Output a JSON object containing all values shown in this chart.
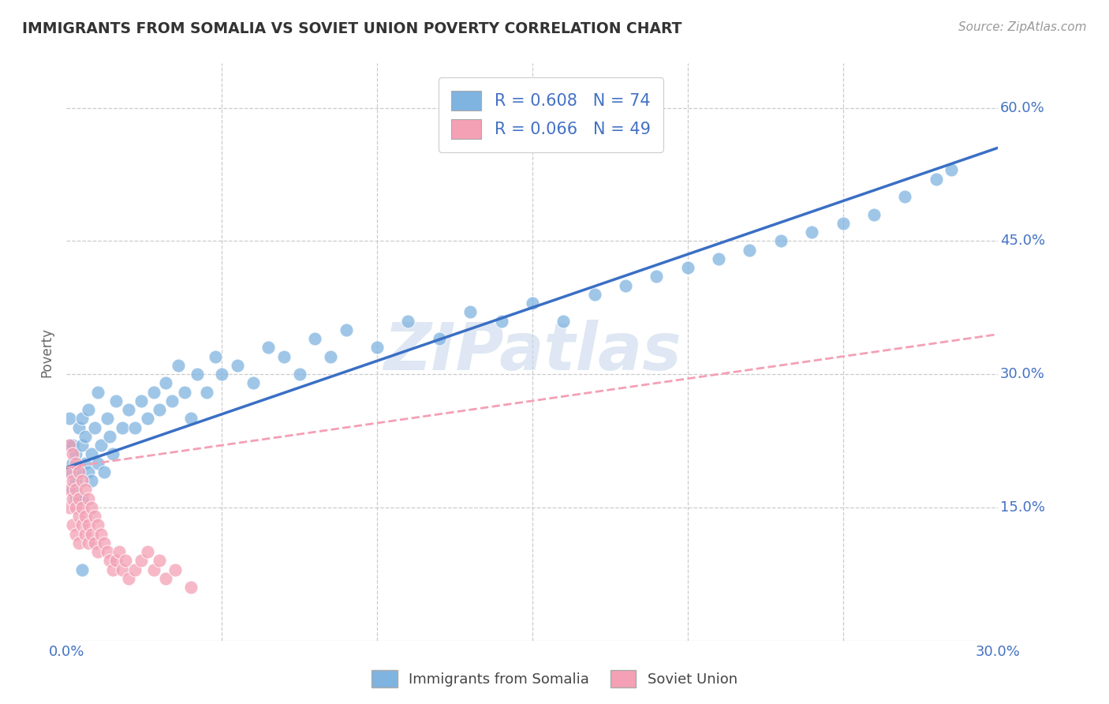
{
  "title": "IMMIGRANTS FROM SOMALIA VS SOVIET UNION POVERTY CORRELATION CHART",
  "source_text": "Source: ZipAtlas.com",
  "ylabel": "Poverty",
  "xlim": [
    0.0,
    0.3
  ],
  "ylim": [
    0.0,
    0.65
  ],
  "yticks": [
    0.15,
    0.3,
    0.45,
    0.6
  ],
  "ytick_labels": [
    "15.0%",
    "30.0%",
    "45.0%",
    "60.0%"
  ],
  "xtick_show": [
    0.0,
    0.3
  ],
  "xtick_labels_show": [
    "0.0%",
    "30.0%"
  ],
  "somalia_color": "#7fb3e0",
  "soviet_color": "#f4a0b5",
  "somalia_line_color": "#3a6fc4",
  "soviet_line_color": "#f4a0b5",
  "legend_label_somalia": "R = 0.608   N = 74",
  "legend_label_soviet": "R = 0.066   N = 49",
  "watermark": "ZIPatlas",
  "watermark_color": "#c8d8ec",
  "background_color": "#ffffff",
  "grid_color": "#cccccc",
  "somalia_line_y0": 0.195,
  "somalia_line_y1": 0.555,
  "soviet_line_y0": 0.195,
  "soviet_line_y1": 0.345,
  "somalia_x": [
    0.001,
    0.001,
    0.001,
    0.002,
    0.002,
    0.002,
    0.003,
    0.003,
    0.003,
    0.004,
    0.004,
    0.005,
    0.005,
    0.005,
    0.006,
    0.006,
    0.007,
    0.007,
    0.008,
    0.008,
    0.009,
    0.01,
    0.01,
    0.011,
    0.012,
    0.013,
    0.014,
    0.015,
    0.016,
    0.018,
    0.02,
    0.022,
    0.024,
    0.026,
    0.028,
    0.03,
    0.032,
    0.034,
    0.036,
    0.038,
    0.04,
    0.042,
    0.045,
    0.048,
    0.05,
    0.055,
    0.06,
    0.065,
    0.07,
    0.075,
    0.08,
    0.085,
    0.09,
    0.1,
    0.11,
    0.12,
    0.13,
    0.14,
    0.15,
    0.16,
    0.17,
    0.18,
    0.19,
    0.2,
    0.21,
    0.22,
    0.23,
    0.24,
    0.25,
    0.26,
    0.27,
    0.28,
    0.285,
    0.005
  ],
  "somalia_y": [
    0.22,
    0.25,
    0.19,
    0.2,
    0.17,
    0.22,
    0.18,
    0.21,
    0.16,
    0.24,
    0.19,
    0.22,
    0.25,
    0.16,
    0.2,
    0.23,
    0.19,
    0.26,
    0.21,
    0.18,
    0.24,
    0.2,
    0.28,
    0.22,
    0.19,
    0.25,
    0.23,
    0.21,
    0.27,
    0.24,
    0.26,
    0.24,
    0.27,
    0.25,
    0.28,
    0.26,
    0.29,
    0.27,
    0.31,
    0.28,
    0.25,
    0.3,
    0.28,
    0.32,
    0.3,
    0.31,
    0.29,
    0.33,
    0.32,
    0.3,
    0.34,
    0.32,
    0.35,
    0.33,
    0.36,
    0.34,
    0.37,
    0.36,
    0.38,
    0.36,
    0.39,
    0.4,
    0.41,
    0.42,
    0.43,
    0.44,
    0.45,
    0.46,
    0.47,
    0.48,
    0.5,
    0.52,
    0.53,
    0.08
  ],
  "soviet_x": [
    0.001,
    0.001,
    0.001,
    0.001,
    0.002,
    0.002,
    0.002,
    0.002,
    0.003,
    0.003,
    0.003,
    0.003,
    0.004,
    0.004,
    0.004,
    0.004,
    0.005,
    0.005,
    0.005,
    0.006,
    0.006,
    0.006,
    0.007,
    0.007,
    0.007,
    0.008,
    0.008,
    0.009,
    0.009,
    0.01,
    0.01,
    0.011,
    0.012,
    0.013,
    0.014,
    0.015,
    0.016,
    0.017,
    0.018,
    0.019,
    0.02,
    0.022,
    0.024,
    0.026,
    0.028,
    0.03,
    0.032,
    0.035,
    0.04
  ],
  "soviet_y": [
    0.22,
    0.19,
    0.17,
    0.15,
    0.21,
    0.18,
    0.16,
    0.13,
    0.2,
    0.17,
    0.15,
    0.12,
    0.19,
    0.16,
    0.14,
    0.11,
    0.18,
    0.15,
    0.13,
    0.17,
    0.14,
    0.12,
    0.16,
    0.13,
    0.11,
    0.15,
    0.12,
    0.14,
    0.11,
    0.13,
    0.1,
    0.12,
    0.11,
    0.1,
    0.09,
    0.08,
    0.09,
    0.1,
    0.08,
    0.09,
    0.07,
    0.08,
    0.09,
    0.1,
    0.08,
    0.09,
    0.07,
    0.08,
    0.06
  ]
}
